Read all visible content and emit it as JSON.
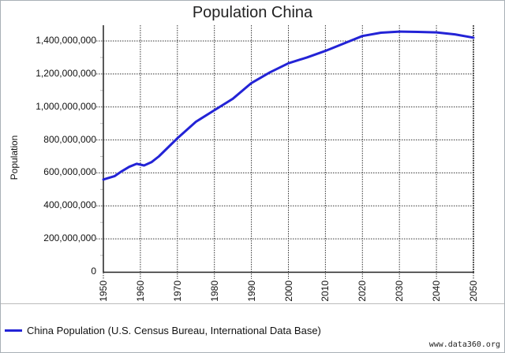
{
  "title": "Population China",
  "ylabel": "Population",
  "legend": {
    "label": "China Population (U.S. Census Bureau, International Data Base)",
    "color": "#2323d6"
  },
  "credit": "www.data360.org",
  "yticks": [
    "0",
    "200,000,000",
    "400,000,000",
    "600,000,000",
    "800,000,000",
    "1,000,000,000",
    "1,200,000,000",
    "1,400,000,000"
  ],
  "xticks": [
    "1950",
    "1960",
    "1970",
    "1980",
    "1990",
    "2000",
    "2010",
    "2020",
    "2030",
    "2040",
    "2050"
  ],
  "chart_data": {
    "type": "line",
    "title": "Population China",
    "xlabel": "",
    "ylabel": "Population",
    "xlim": [
      1950,
      2050
    ],
    "ylim": [
      0,
      1500000000
    ],
    "grid": true,
    "legend_position": "bottom",
    "x": [
      1950,
      1953,
      1955,
      1957,
      1959,
      1961,
      1963,
      1965,
      1970,
      1975,
      1980,
      1985,
      1990,
      1995,
      2000,
      2005,
      2010,
      2015,
      2020,
      2025,
      2030,
      2035,
      2040,
      2045,
      2050
    ],
    "series": [
      {
        "name": "China Population (U.S. Census Bureau, International Data Base)",
        "color": "#2323d6",
        "values": [
          560000000,
          580000000,
          610000000,
          637000000,
          655000000,
          645000000,
          665000000,
          700000000,
          810000000,
          910000000,
          980000000,
          1050000000,
          1145000000,
          1210000000,
          1265000000,
          1300000000,
          1340000000,
          1385000000,
          1430000000,
          1450000000,
          1457000000,
          1455000000,
          1452000000,
          1440000000,
          1420000000
        ]
      }
    ]
  }
}
